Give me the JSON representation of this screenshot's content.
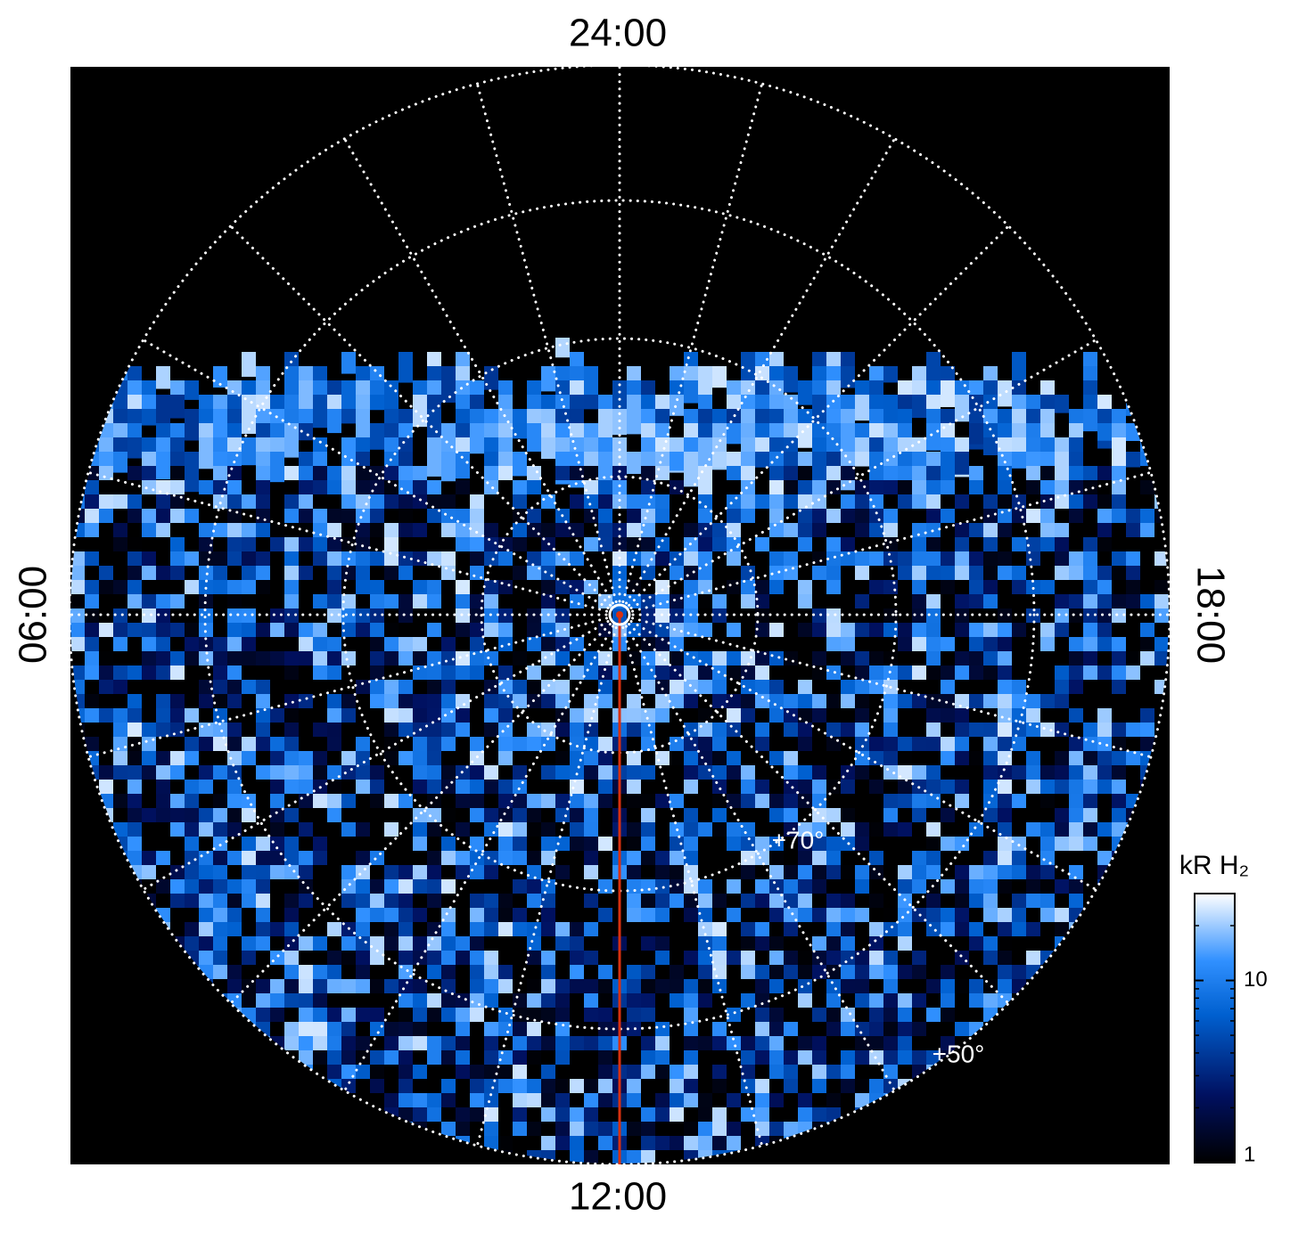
{
  "labels": {
    "top": "24:00",
    "bottom": "12:00",
    "left": "06:00",
    "right": "18:00"
  },
  "latitude_labels": [
    "+70°",
    "+50°"
  ],
  "colorbar": {
    "title": "kR H₂",
    "scale": "log",
    "lim": [
      1,
      30
    ],
    "ticks": [
      1,
      10
    ]
  }
}
